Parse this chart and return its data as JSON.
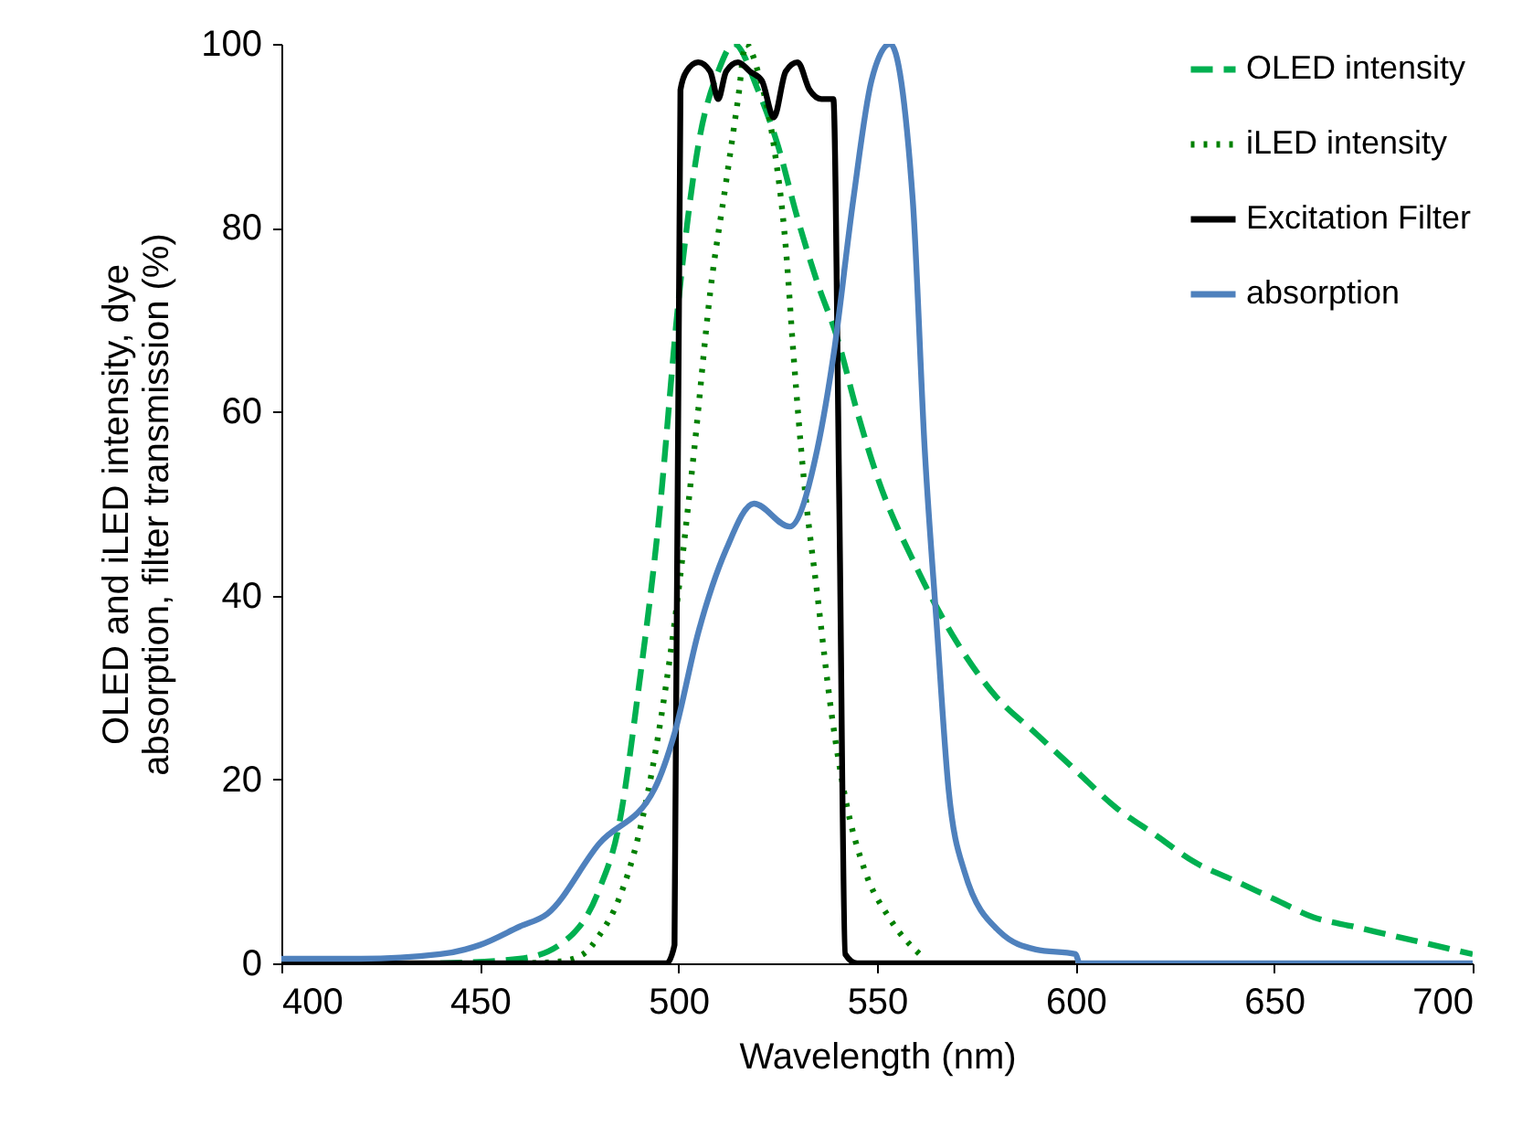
{
  "chart_data": {
    "type": "line",
    "xlabel": "Wavelength (nm)",
    "ylabel": "OLED and iLED intensity, dye absorption, filter transmission (%)",
    "xlim": [
      400,
      700
    ],
    "xticks": [
      400,
      450,
      500,
      550,
      600,
      650,
      700
    ],
    "ylim": [
      0,
      100
    ],
    "yticks": [
      0,
      20,
      40,
      60,
      80,
      100
    ],
    "grid": false,
    "legend": "top right",
    "series": [
      {
        "name": "OLED intensity",
        "color": "#00b050",
        "line_style": "dashed",
        "x": [
          440,
          460,
          470,
          480,
          485,
          490,
          495,
          500,
          505,
          510,
          514,
          520,
          525,
          530,
          535,
          540,
          545,
          550,
          560,
          570,
          580,
          590,
          600,
          610,
          620,
          630,
          640,
          650,
          660,
          670,
          680,
          690,
          700
        ],
        "values": [
          0,
          0.5,
          2,
          8,
          15,
          30,
          48,
          72,
          89,
          97,
          100,
          95,
          89,
          81,
          74,
          68,
          60,
          53,
          43,
          35,
          29,
          25,
          21,
          17,
          14,
          11,
          9,
          7,
          5,
          4,
          3,
          2,
          1
        ]
      },
      {
        "name": "iLED intensity",
        "color": "#008000",
        "line_style": "dotted",
        "x": [
          460,
          470,
          476,
          480,
          485,
          490,
          499,
          504,
          508,
          512,
          515,
          517,
          520,
          524,
          527,
          529,
          531.5,
          535,
          538.6,
          542,
          547,
          553,
          562
        ],
        "values": [
          0,
          0.2,
          1,
          3,
          7,
          14,
          37,
          56,
          73,
          85,
          94,
          100,
          97,
          89,
          78,
          66,
          53,
          40,
          27,
          18,
          10,
          5,
          0.5
        ]
      },
      {
        "name": "Excitation Filter",
        "color": "#000000",
        "line_style": "solid",
        "x": [
          400,
          497,
          499,
          500.5,
          502,
          505,
          508,
          510,
          512,
          515,
          518,
          521,
          524,
          527,
          530,
          533,
          536,
          539,
          540.5,
          542,
          545,
          600
        ],
        "values": [
          0,
          0,
          2,
          95,
          97,
          98,
          97,
          94,
          97,
          98,
          97,
          96,
          92,
          97,
          98,
          95,
          94,
          94,
          50,
          1,
          0,
          0
        ]
      },
      {
        "name": "absorption",
        "color": "#4f81bd",
        "line_style": "solid",
        "x": [
          400,
          420,
          440,
          450,
          460,
          467,
          480,
          494,
          499,
          505,
          512,
          519,
          528,
          535,
          539,
          544,
          548.6,
          553.3,
          559,
          562,
          565,
          568,
          572,
          581,
          590,
          600,
          601,
          700
        ],
        "values": [
          0.5,
          0.5,
          1,
          2,
          4,
          5.4,
          13,
          19,
          25,
          36,
          45,
          50,
          47.5,
          56,
          66,
          83,
          96,
          100,
          83,
          56,
          37,
          19,
          10,
          3.4,
          1.5,
          1,
          0,
          0
        ]
      }
    ]
  }
}
